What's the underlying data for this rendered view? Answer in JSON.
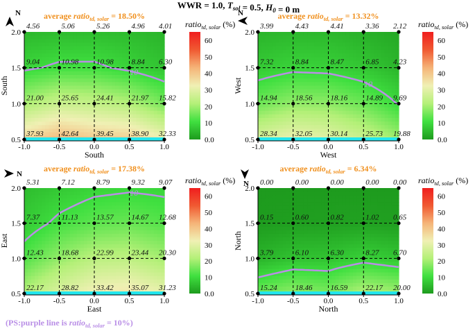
{
  "figure": {
    "title": "WWR = 1.0, T_sol = 0.5, H_0 = 0 m",
    "ps_note": "(PS:purple line is ratio_td, solar = 10%)",
    "north_label": "N"
  },
  "colors": {
    "purple": "#b98ee6",
    "orange": "#f0901e",
    "cyan": "#22e6ee",
    "grid": "#000000"
  },
  "colorbar": {
    "label": "ratio_td, solar (%)",
    "ticks": [
      0.0,
      10,
      20,
      30,
      40,
      50,
      60
    ],
    "tick_labels": [
      "0.0",
      "10",
      "20",
      "30",
      "40",
      "50",
      "60"
    ],
    "range": [
      0,
      65
    ],
    "stops": [
      "#1e9b1e",
      "#40e040",
      "#b4f078",
      "#f0f0b4",
      "#f5b478",
      "#f05a32",
      "#f01e1e"
    ]
  },
  "chart_data": [
    {
      "type": "heatmap",
      "orientation": "South",
      "title": "average ratio_td, solar = 18.50%",
      "xlabel": "South",
      "ylabel": "South",
      "x": [
        -1.0,
        -0.5,
        0.0,
        0.5,
        1.0
      ],
      "y": [
        0.5,
        1.0,
        1.5,
        2.0
      ],
      "xlim": [
        -1.0,
        1.0
      ],
      "ylim": [
        0.5,
        2.0
      ],
      "x_tick_labels": [
        "-1.0",
        "-0.5",
        "0.0",
        "0.5",
        "1.0"
      ],
      "y_tick_labels": [
        "0.5",
        "1.0",
        "1.5",
        "2.0"
      ],
      "z": [
        [
          37.93,
          42.64,
          39.45,
          38.9,
          32.33
        ],
        [
          21.0,
          25.65,
          24.41,
          21.97,
          15.82
        ],
        [
          9.04,
          10.98,
          10.98,
          8.84,
          6.3
        ],
        [
          4.56,
          5.06,
          5.26,
          4.96,
          4.01
        ]
      ],
      "z_labels": [
        [
          "37.93",
          "42.64",
          "39.45",
          "38.90",
          "32.33"
        ],
        [
          "21.00",
          "25.65",
          "24.41",
          "21.97",
          "15.82"
        ],
        [
          "9.04",
          "10.98",
          "10.98",
          "8.84",
          "6.30"
        ],
        [
          "4.56",
          "5.06",
          "5.26",
          "4.96",
          "4.01"
        ]
      ],
      "contour_label": "10",
      "arrow_direction": "north-up"
    },
    {
      "type": "heatmap",
      "orientation": "West",
      "title": "average ratio_td, solar = 13.32%",
      "xlabel": "West",
      "ylabel": "West",
      "x": [
        -1.0,
        -0.5,
        0.0,
        0.5,
        1.0
      ],
      "y": [
        0.5,
        1.0,
        1.5,
        2.0
      ],
      "xlim": [
        -1.0,
        1.0
      ],
      "ylim": [
        0.5,
        2.0
      ],
      "x_tick_labels": [
        "-1.0",
        "-0.5",
        "0.0",
        "0.5",
        "1.0"
      ],
      "y_tick_labels": [
        "0.5",
        "1.0",
        "1.5",
        "2.0"
      ],
      "z": [
        [
          28.34,
          32.05,
          30.14,
          25.73,
          19.88
        ],
        [
          14.94,
          18.56,
          18.16,
          14.89,
          9.69
        ],
        [
          7.32,
          8.84,
          8.47,
          6.85,
          4.23
        ],
        [
          3.99,
          4.43,
          4.41,
          3.36,
          2.12
        ]
      ],
      "z_labels": [
        [
          "28.34",
          "32.05",
          "30.14",
          "25.73",
          "19.88"
        ],
        [
          "14.94",
          "18.56",
          "18.16",
          "14.89",
          "9.69"
        ],
        [
          "7.32",
          "8.84",
          "8.47",
          "6.85",
          "4.23"
        ],
        [
          "3.99",
          "4.43",
          "4.41",
          "3.36",
          "2.12"
        ]
      ],
      "contour_label": "10",
      "arrow_direction": "north-left"
    },
    {
      "type": "heatmap",
      "orientation": "East",
      "title": "average ratio_td, solar = 17.38%",
      "xlabel": "East",
      "ylabel": "East",
      "x": [
        -1.0,
        -0.5,
        0.0,
        0.5,
        1.0
      ],
      "y": [
        0.5,
        1.0,
        1.5,
        2.0
      ],
      "xlim": [
        -1.0,
        1.0
      ],
      "ylim": [
        0.5,
        2.0
      ],
      "x_tick_labels": [
        "-1.0",
        "-0.5",
        "0.0",
        "0.5",
        "1.0"
      ],
      "y_tick_labels": [
        "0.5",
        "1.0",
        "1.5",
        "2.0"
      ],
      "z": [
        [
          22.17,
          28.82,
          33.42,
          35.07,
          31.23
        ],
        [
          12.43,
          18.68,
          22.99,
          23.44,
          20.3
        ],
        [
          7.37,
          11.13,
          13.57,
          14.67,
          12.68
        ],
        [
          5.31,
          7.12,
          8.79,
          9.32,
          9.07
        ]
      ],
      "z_labels": [
        [
          "22.17",
          "28.82",
          "33.42",
          "35.07",
          "31.23"
        ],
        [
          "12.43",
          "18.68",
          "22.99",
          "23.44",
          "20.30"
        ],
        [
          "7.37",
          "11.13",
          "13.57",
          "14.67",
          "12.68"
        ],
        [
          "5.31",
          "7.12",
          "8.79",
          "9.32",
          "9.07"
        ]
      ],
      "contour_label": "10",
      "arrow_direction": "north-right"
    },
    {
      "type": "heatmap",
      "orientation": "North",
      "title": "average ratio_td, solar = 6.34%",
      "xlabel": "North",
      "ylabel": "North",
      "x": [
        -1.0,
        -0.5,
        0.0,
        0.5,
        1.0
      ],
      "y": [
        0.5,
        1.0,
        1.5,
        2.0
      ],
      "xlim": [
        -1.0,
        1.0
      ],
      "ylim": [
        0.5,
        2.0
      ],
      "x_tick_labels": [
        "-1.0",
        "-0.5",
        "0.0",
        "0.5",
        "1.0"
      ],
      "y_tick_labels": [
        "0.5",
        "1.0",
        "1.5",
        "2.0"
      ],
      "z": [
        [
          15.24,
          18.46,
          16.59,
          22.17,
          20.0
        ],
        [
          3.79,
          6.1,
          6.3,
          8.27,
          6.7
        ],
        [
          0.15,
          0.6,
          0.82,
          1.02,
          0.65
        ],
        [
          0.0,
          0.0,
          0.0,
          0.0,
          0.0
        ]
      ],
      "z_labels": [
        [
          "15.24",
          "18.46",
          "16.59",
          "22.17",
          "20.00"
        ],
        [
          "3.79",
          "6.10",
          "6.30",
          "8.27",
          "6.70"
        ],
        [
          "0.15",
          "0.60",
          "0.82",
          "1.02",
          "0.65"
        ],
        [
          "0.00",
          "0.00",
          "0.00",
          "0.00",
          "0.00"
        ]
      ],
      "contour_label": "",
      "arrow_direction": "north-down"
    }
  ]
}
